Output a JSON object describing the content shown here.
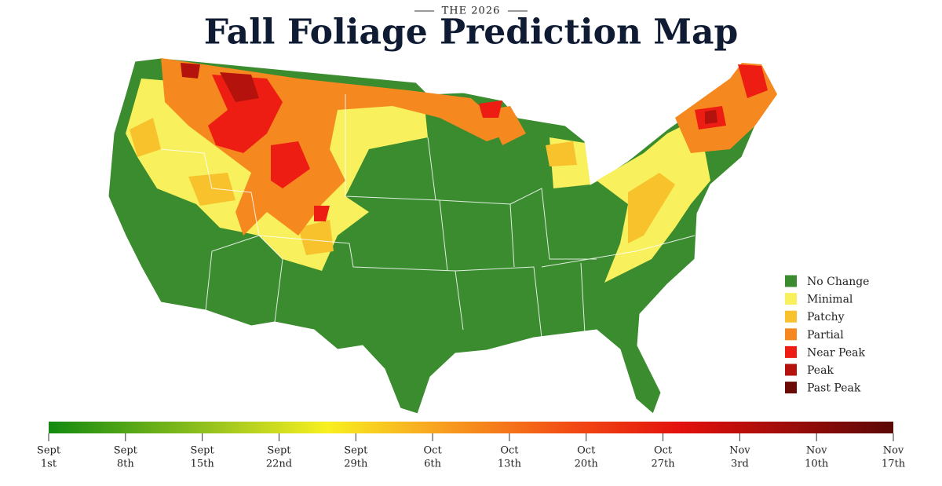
{
  "header": {
    "kicker": "THE 2026",
    "title": "Fall Foliage Prediction Map"
  },
  "legend": {
    "items": [
      {
        "label": "No Change",
        "color": "#3a8c2f"
      },
      {
        "label": "Minimal",
        "color": "#f8f05c"
      },
      {
        "label": "Patchy",
        "color": "#f8c22c"
      },
      {
        "label": "Partial",
        "color": "#f5891f"
      },
      {
        "label": "Near Peak",
        "color": "#ee1d13"
      },
      {
        "label": "Peak",
        "color": "#b4120c"
      },
      {
        "label": "Past Peak",
        "color": "#6a0b06"
      }
    ]
  },
  "timeline": [
    {
      "month": "Sept",
      "day": "1st"
    },
    {
      "month": "Sept",
      "day": "8th"
    },
    {
      "month": "Sept",
      "day": "15th"
    },
    {
      "month": "Sept",
      "day": "22nd"
    },
    {
      "month": "Sept",
      "day": "29th"
    },
    {
      "month": "Oct",
      "day": "6th"
    },
    {
      "month": "Oct",
      "day": "13th"
    },
    {
      "month": "Oct",
      "day": "20th"
    },
    {
      "month": "Oct",
      "day": "27th"
    },
    {
      "month": "Nov",
      "day": "3rd"
    },
    {
      "month": "Nov",
      "day": "10th"
    },
    {
      "month": "Nov",
      "day": "17th"
    }
  ]
}
